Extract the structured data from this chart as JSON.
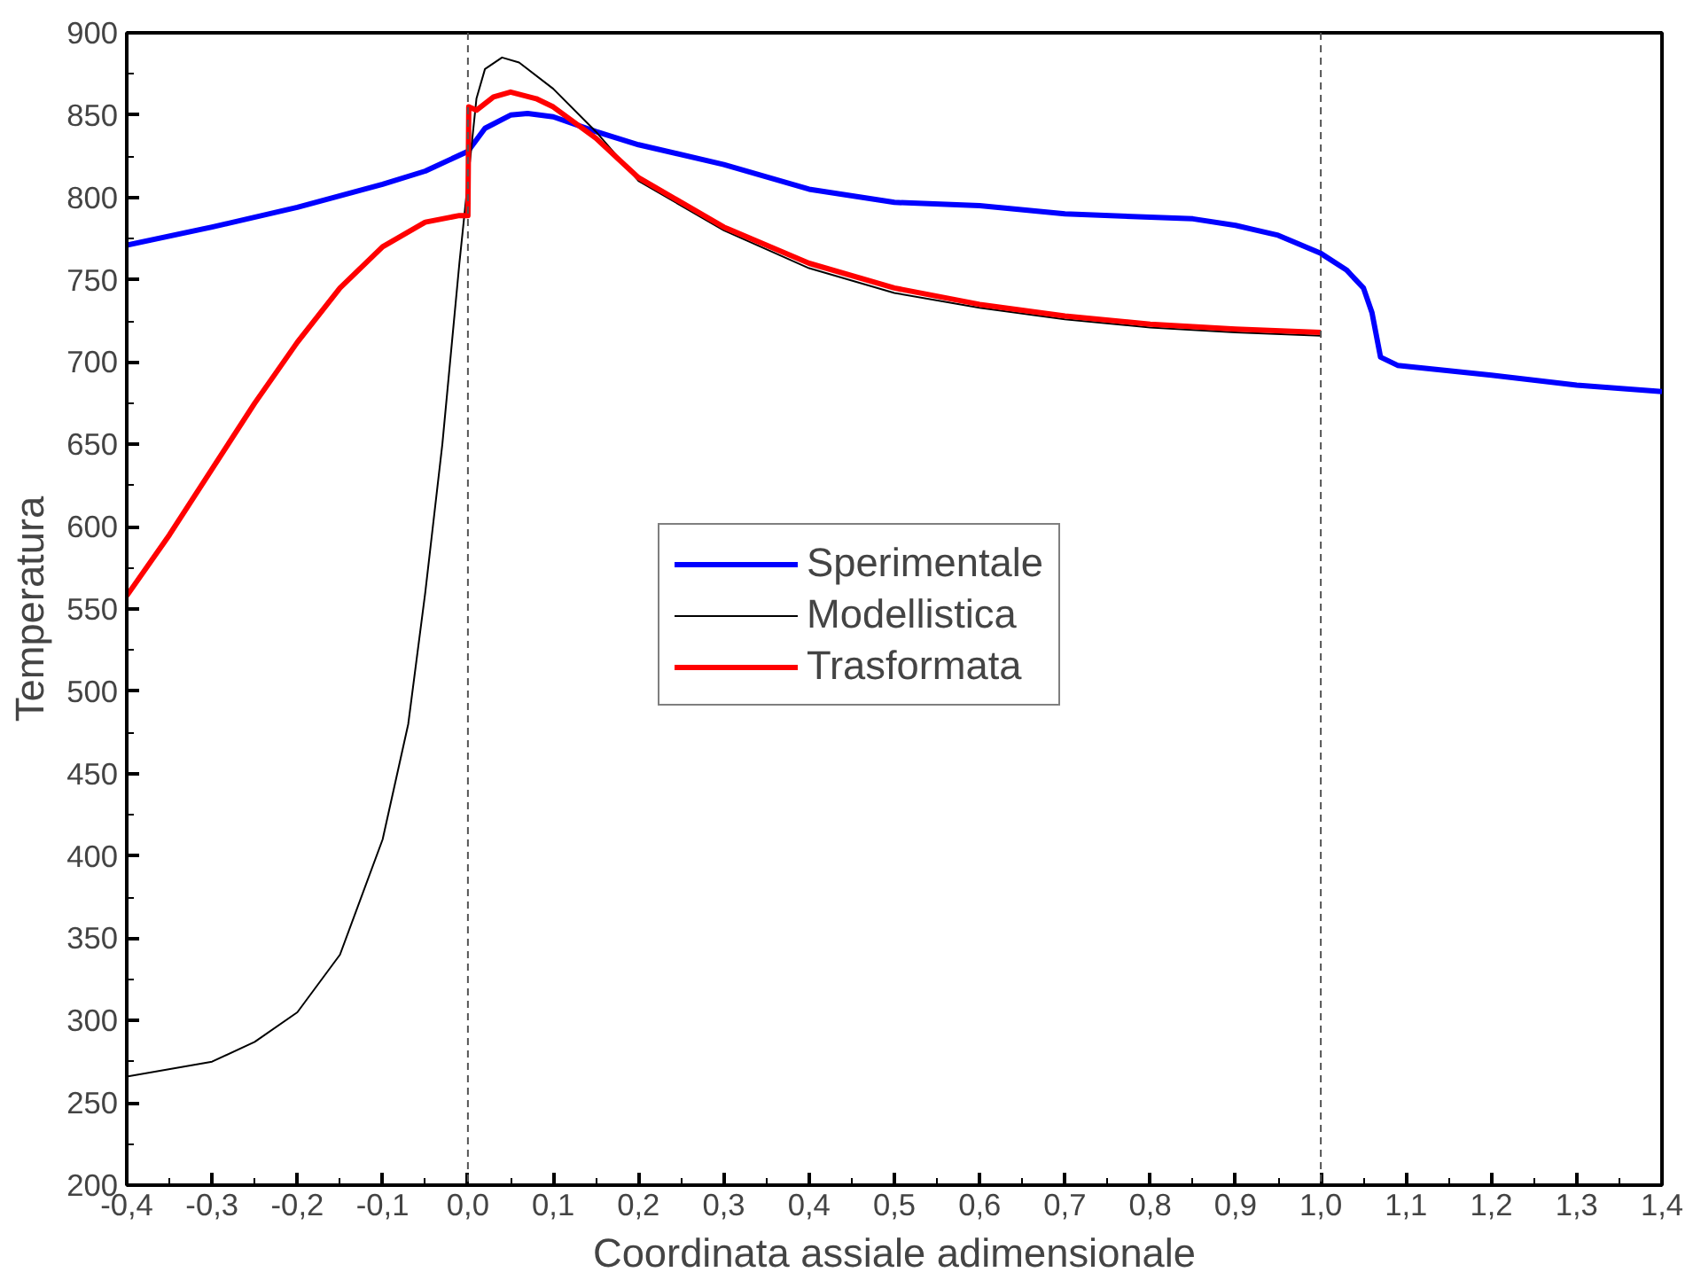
{
  "chart_data": {
    "type": "line",
    "xlabel": "Coordinata assiale adimensionale",
    "ylabel": "Temperatura",
    "xlim": [
      -0.4,
      1.4
    ],
    "ylim": [
      200,
      900
    ],
    "xticks": [
      {
        "value": -0.4,
        "label": "-0,4"
      },
      {
        "value": -0.3,
        "label": "-0,3"
      },
      {
        "value": -0.2,
        "label": "-0,2"
      },
      {
        "value": -0.1,
        "label": "-0,1"
      },
      {
        "value": 0,
        "label": "0,0"
      },
      {
        "value": 0.1,
        "label": "0,1"
      },
      {
        "value": 0.2,
        "label": "0,2"
      },
      {
        "value": 0.3,
        "label": "0,3"
      },
      {
        "value": 0.4,
        "label": "0,4"
      },
      {
        "value": 0.5,
        "label": "0,5"
      },
      {
        "value": 0.6,
        "label": "0,6"
      },
      {
        "value": 0.7,
        "label": "0,7"
      },
      {
        "value": 0.8,
        "label": "0,8"
      },
      {
        "value": 0.9,
        "label": "0,9"
      },
      {
        "value": 1.0,
        "label": "1,0"
      },
      {
        "value": 1.1,
        "label": "1,1"
      },
      {
        "value": 1.2,
        "label": "1,2"
      },
      {
        "value": 1.3,
        "label": "1,3"
      },
      {
        "value": 1.4,
        "label": "1,4"
      }
    ],
    "yticks": [
      200,
      250,
      300,
      350,
      400,
      450,
      500,
      550,
      600,
      650,
      700,
      750,
      800,
      850,
      900
    ],
    "grid": false,
    "legend": "center",
    "marker": "none",
    "line_style": "solid",
    "ref_lines": [
      {
        "axis": "x",
        "value": 0,
        "color": "#555555",
        "line_style": "dashed"
      },
      {
        "axis": "x",
        "value": 1,
        "color": "#555555",
        "line_style": "dashed"
      }
    ],
    "series": [
      {
        "name": "Sperimentale",
        "color": "#0000ff",
        "x": [
          -0.4,
          -0.3,
          -0.2,
          -0.1,
          -0.05,
          0,
          0.02,
          0.05,
          0.07,
          0.1,
          0.15,
          0.2,
          0.3,
          0.4,
          0.5,
          0.6,
          0.7,
          0.8,
          0.85,
          0.9,
          0.95,
          1.0,
          1.03,
          1.05,
          1.06,
          1.07,
          1.09,
          1.2,
          1.3,
          1.4
        ],
        "values": [
          771,
          782,
          794,
          808,
          816,
          828,
          842,
          850,
          851,
          849,
          840,
          832,
          820,
          805,
          797,
          795,
          790,
          788,
          787,
          783,
          777,
          766,
          756,
          745,
          730,
          703,
          698,
          692,
          686,
          682
        ]
      },
      {
        "name": "Modellistica",
        "color": "#000000",
        "x": [
          -0.4,
          -0.3,
          -0.25,
          -0.2,
          -0.15,
          -0.1,
          -0.07,
          -0.05,
          -0.03,
          -0.01,
          0,
          0.01,
          0.02,
          0.04,
          0.06,
          0.1,
          0.15,
          0.2,
          0.3,
          0.4,
          0.5,
          0.6,
          0.7,
          0.8,
          0.9,
          1.0
        ],
        "values": [
          266,
          275,
          287,
          305,
          340,
          410,
          480,
          560,
          650,
          760,
          810,
          860,
          878,
          885,
          882,
          866,
          840,
          810,
          780,
          757,
          742,
          733,
          726,
          721,
          718,
          716
        ]
      },
      {
        "name": "Trasformata",
        "color": "#ff0000",
        "x": [
          -0.4,
          -0.35,
          -0.3,
          -0.25,
          -0.2,
          -0.15,
          -0.1,
          -0.05,
          -0.01,
          0,
          0.001,
          0.01,
          0.03,
          0.05,
          0.08,
          0.1,
          0.15,
          0.2,
          0.3,
          0.4,
          0.5,
          0.6,
          0.7,
          0.8,
          0.9,
          1.0
        ],
        "values": [
          558,
          595,
          635,
          675,
          712,
          745,
          770,
          785,
          789,
          789,
          855,
          853,
          861,
          864,
          860,
          855,
          836,
          812,
          782,
          760,
          745,
          735,
          728,
          723,
          720,
          718
        ]
      }
    ]
  }
}
